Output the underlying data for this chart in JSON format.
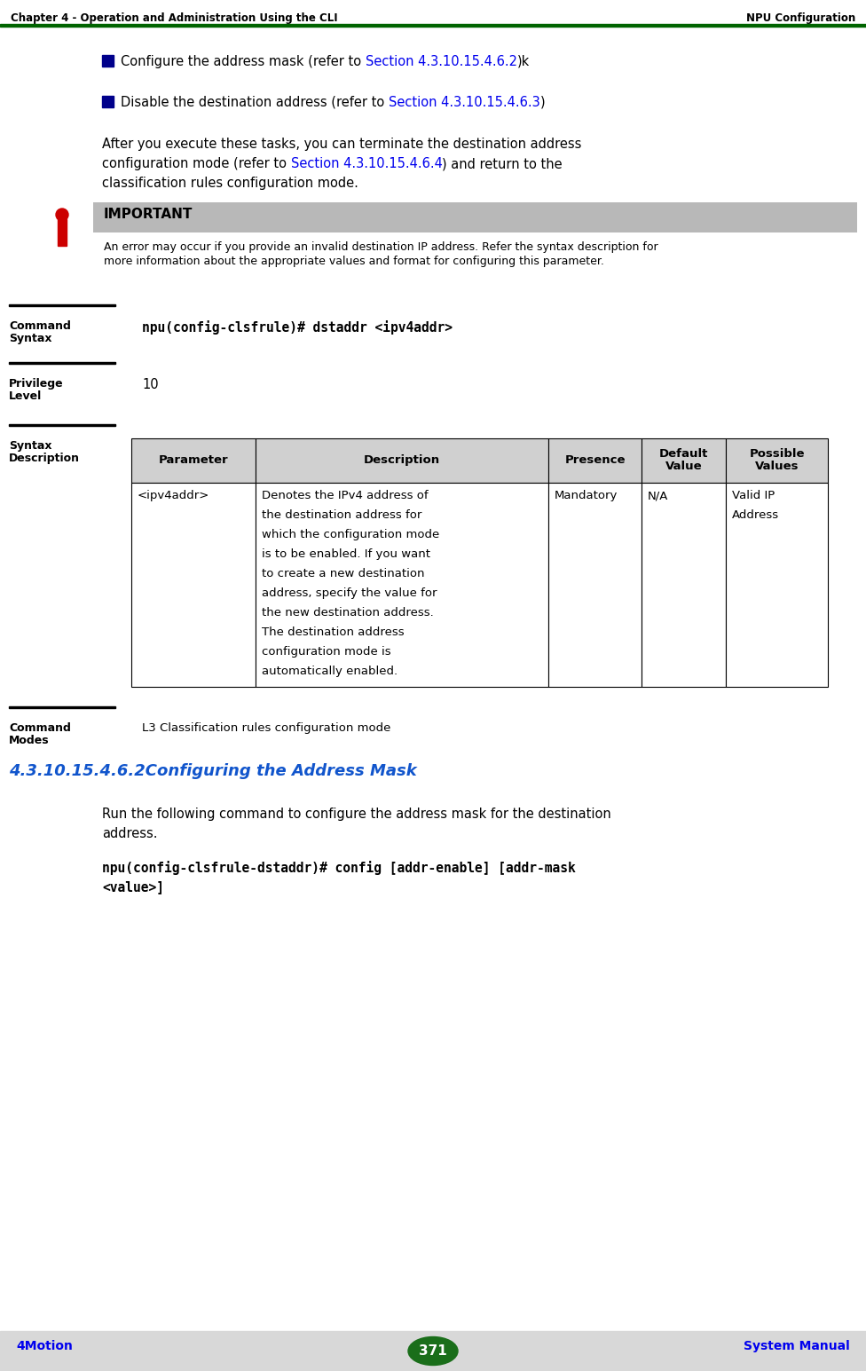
{
  "header_left": "Chapter 4 - Operation and Administration Using the CLI",
  "header_right": "NPU Configuration",
  "header_line_color": "#006400",
  "footer_left": "4Motion",
  "footer_center": "371",
  "footer_right": "System Manual",
  "footer_bg": "#d8d8d8",
  "footer_oval_color": "#1a6e1a",
  "link_color": "#0000EE",
  "bullet_color": "#00008B",
  "bg_color": "#ffffff",
  "text_color": "#000000",
  "important_bg": "#b8b8b8",
  "important_title": "IMPORTANT",
  "important_body_line1": "An error may occur if you provide an invalid destination IP address. Refer the syntax description for",
  "important_body_line2": "more information about the appropriate values and format for configuring this parameter.",
  "icon_red": "#cc0000",
  "section_title_color": "#1155CC",
  "section_title": "4.3.10.15.4.6.2Configuring the Address Mask",
  "label_line_color": "#000000",
  "table_header_bg": "#d0d0d0",
  "table_border_color": "#000000",
  "table_headers": [
    "Parameter",
    "Description",
    "Presence",
    "Default\nValue",
    "Possible\nValues"
  ],
  "table_row_col0": "<ipv4addr>",
  "table_row_col1": [
    "Denotes the IPv4 address of",
    "the destination address for",
    "which the configuration mode",
    "is to be enabled. If you want",
    "to create a new destination",
    "address, specify the value for",
    "the new destination address.",
    "The destination address",
    "configuration mode is",
    "automatically enabled."
  ],
  "table_row_col2": "Mandatory",
  "table_row_col3": "N/A",
  "table_row_col4_line1": "Valid IP",
  "table_row_col4_line2": "Address",
  "cmd_modes_value": "L3 Classification rules configuration mode",
  "run_cmd_line1": "Run the following command to configure the address mask for the destination",
  "run_cmd_line2": "address.",
  "code_line1": "npu(config-clsfrule-dstaddr)# config [addr-enable] [addr-mask",
  "code_line2": "<value>]"
}
